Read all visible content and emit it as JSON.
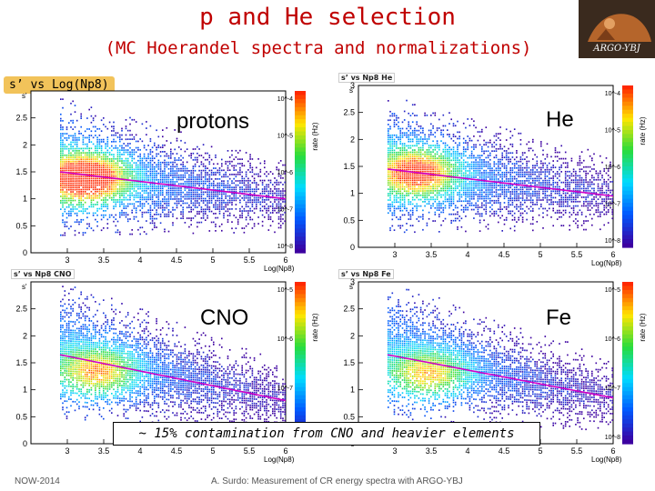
{
  "header": {
    "title": "p and He selection",
    "subtitle": "(MC Hoerandel spectra and normalizations)",
    "logo_text": "ARGO-YBJ",
    "tag": "s’ vs Log(Np8)"
  },
  "panels": [
    {
      "title": "",
      "label": "protons"
    },
    {
      "title": "s’ vs Np8 He",
      "label": "He"
    },
    {
      "title": "s’ vs Np8 CNO",
      "label": "CNO"
    },
    {
      "title": "s’ vs Np8 Fe",
      "label": "Fe"
    }
  ],
  "banner": "~ 15% contamination from CNO and heavier elements",
  "footer": {
    "left": "NOW-2014",
    "center": "A. Surdo: Measurement of CR energy spectra with ARGO-YBJ"
  },
  "chart_data": [
    {
      "type": "heatmap",
      "title": "",
      "xlabel": "Log(Np8)",
      "ylabel": "s'",
      "x_ticks": [
        "3",
        "3.5",
        "4",
        "4.5",
        "5",
        "5.5",
        "6"
      ],
      "y_ticks": [
        "0",
        "0.5",
        "1",
        "1.5",
        "2",
        "2.5"
      ],
      "xlim": [
        2.5,
        6
      ],
      "ylim": [
        0,
        3
      ],
      "colorbar_label": "rate (Hz)",
      "colorbar_ticks": [
        "10^-4",
        "10^-5",
        "10^-6",
        "10^-7",
        "10^-8"
      ],
      "fit_line": {
        "x": [
          2.9,
          6.0
        ],
        "y": [
          1.5,
          1.0
        ]
      },
      "hot_region": {
        "x_center": 3.25,
        "y_center": 1.35,
        "intensity": 1.0
      },
      "label": "protons"
    },
    {
      "type": "heatmap",
      "title": "s’ vs Np8 He",
      "xlabel": "Log(Np8)",
      "ylabel": "s'",
      "x_ticks": [
        "3",
        "3.5",
        "4",
        "4.5",
        "5",
        "5.5",
        "6"
      ],
      "y_ticks": [
        "0",
        "0.5",
        "1",
        "1.5",
        "2",
        "2.5",
        "3"
      ],
      "xlim": [
        2.5,
        6
      ],
      "ylim": [
        0,
        3
      ],
      "colorbar_label": "rate (Hz)",
      "colorbar_ticks": [
        "10^-4",
        "10^-5",
        "10^-6",
        "10^-7",
        "10^-8"
      ],
      "fit_line": {
        "x": [
          2.9,
          6.0
        ],
        "y": [
          1.45,
          0.95
        ]
      },
      "hot_region": {
        "x_center": 3.3,
        "y_center": 1.35,
        "intensity": 0.7
      },
      "label": "He"
    },
    {
      "type": "heatmap",
      "title": "s’ vs Np8 CNO",
      "xlabel": "Log(Np8)",
      "ylabel": "s'",
      "x_ticks": [
        "3",
        "3.5",
        "4",
        "4.5",
        "5",
        "5.5",
        "6"
      ],
      "y_ticks": [
        "0",
        "0.5",
        "1",
        "1.5",
        "2",
        "2.5"
      ],
      "xlim": [
        2.5,
        6
      ],
      "ylim": [
        0,
        3
      ],
      "colorbar_label": "rate (Hz)",
      "colorbar_ticks": [
        "10^-5",
        "10^-6",
        "10^-7",
        "10^-8"
      ],
      "fit_line": {
        "x": [
          2.9,
          6.0
        ],
        "y": [
          1.65,
          0.8
        ]
      },
      "hot_region": {
        "x_center": 3.4,
        "y_center": 1.3,
        "intensity": 0.45
      },
      "label": "CNO"
    },
    {
      "type": "heatmap",
      "title": "s’ vs Np8 Fe",
      "xlabel": "Log(Np8)",
      "ylabel": "s'",
      "x_ticks": [
        "3",
        "3.5",
        "4",
        "4.5",
        "5",
        "5.5",
        "6"
      ],
      "y_ticks": [
        "0",
        "0.5",
        "1",
        "1.5",
        "2",
        "2.5",
        "3"
      ],
      "xlim": [
        2.5,
        6
      ],
      "ylim": [
        0,
        3
      ],
      "colorbar_label": "rate (Hz)",
      "colorbar_ticks": [
        "10^-5",
        "10^-6",
        "10^-7",
        "10^-8"
      ],
      "fit_line": {
        "x": [
          2.9,
          6.0
        ],
        "y": [
          1.65,
          0.85
        ]
      },
      "hot_region": {
        "x_center": 3.45,
        "y_center": 1.25,
        "intensity": 0.4
      },
      "label": "Fe"
    }
  ]
}
